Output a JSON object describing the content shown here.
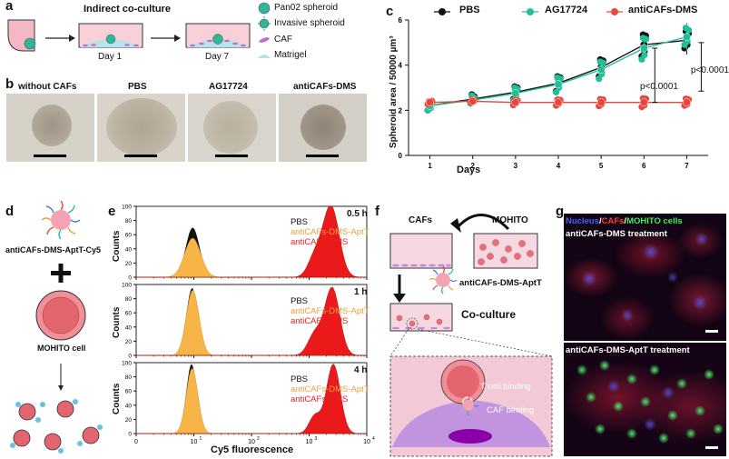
{
  "panel_labels": {
    "a": "a",
    "b": "b",
    "c": "c",
    "d": "d",
    "e": "e",
    "f": "f",
    "g": "g"
  },
  "panel_a": {
    "title": "Indirect co-culture",
    "day1": "Day 1",
    "day7": "Day 7",
    "legend": [
      "Pan02 spheroid",
      "Invasive spheroid",
      "CAF",
      "Matrigel"
    ]
  },
  "panel_b": {
    "labels": [
      "without CAFs",
      "PBS",
      "AG17724",
      "antiCAFs-DMS"
    ]
  },
  "panel_d": {
    "nanoparticle_label": "antiCAFs-DMS-AptT-Cy5",
    "plus": "+",
    "cell_label": "MOHITO cell"
  },
  "panel_e": {
    "xlabel": "Cy5 fluorescence",
    "ylabel": "Counts",
    "yticks": [
      "0",
      "20",
      "40",
      "60",
      "80",
      "100"
    ],
    "xticks": [
      "0",
      "10",
      "10",
      "10",
      "10"
    ],
    "xtick_exp": [
      "",
      "1",
      "2",
      "3",
      "4"
    ],
    "times": [
      "0.5 h",
      "1 h",
      "4 h"
    ],
    "legend": [
      "PBS",
      "antiCAFs-DMS-AptT",
      "antiCAFs-DMS"
    ]
  },
  "panel_f": {
    "cafs": "CAFs",
    "mohito": "MOHITO",
    "np_label": "antiCAFs-DMS-AptT",
    "coculture": "Co-culture",
    "tcell_binding": "T cell binding",
    "caf_binding": "CAF binding"
  },
  "panel_g": {
    "legend_nucleus": "Nucleus",
    "legend_sep1": "/",
    "legend_cafs": "CAFs",
    "legend_sep2": "/",
    "legend_mohito": "MOHITO cells",
    "top_caption": "antiCAFs-DMS treatment",
    "bottom_caption": "antiCAFs-DMS-AptT treatment"
  },
  "chart_data": {
    "type": "line",
    "title": "",
    "xlabel": "Days",
    "ylabel": "Spheroid area / 50000 µm³",
    "x": [
      1,
      2,
      3,
      4,
      5,
      6,
      7
    ],
    "xlim": [
      0.5,
      7.5
    ],
    "ylim": [
      0,
      6
    ],
    "yticks": [
      "0",
      "2",
      "4",
      "6"
    ],
    "xticks": [
      "1",
      "2",
      "3",
      "4",
      "5",
      "6",
      "7"
    ],
    "series": [
      {
        "name": "PBS",
        "color": "#111111",
        "values": [
          2.2,
          2.5,
          2.8,
          3.2,
          3.9,
          4.9,
          5.1
        ]
      },
      {
        "name": "AG17724",
        "color": "#1fbf98",
        "values": [
          2.2,
          2.45,
          2.75,
          3.15,
          3.8,
          4.75,
          5.25
        ]
      },
      {
        "name": "antiCAFs-DMS",
        "color": "#e8463c",
        "values": [
          2.35,
          2.4,
          2.35,
          2.35,
          2.35,
          2.35,
          2.35
        ]
      }
    ],
    "annotations": [
      "p<0.0001",
      "p<0.0001"
    ]
  }
}
